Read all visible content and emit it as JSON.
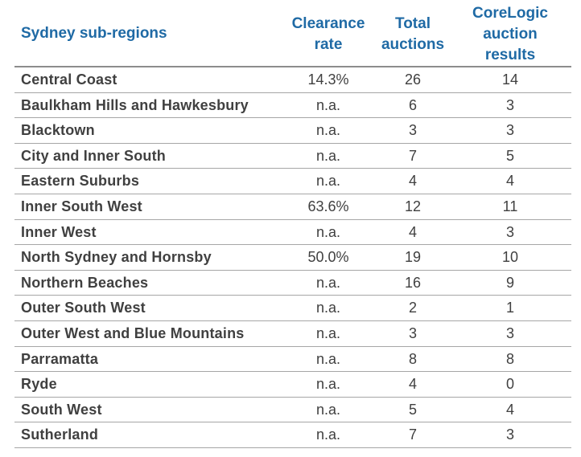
{
  "header": {
    "region": "Sydney sub-regions",
    "clearance": "Clearance\nrate",
    "total": "Total\nauctions",
    "corelogic": "CoreLogic\nauction\nresults"
  },
  "rows": [
    {
      "region": "Central Coast",
      "clearance": "14.3%",
      "total": "26",
      "corelogic": "14"
    },
    {
      "region": "Baulkham Hills and Hawkesbury",
      "clearance": "n.a.",
      "total": "6",
      "corelogic": "3"
    },
    {
      "region": "Blacktown",
      "clearance": "n.a.",
      "total": "3",
      "corelogic": "3"
    },
    {
      "region": "City and Inner South",
      "clearance": "n.a.",
      "total": "7",
      "corelogic": "5"
    },
    {
      "region": "Eastern Suburbs",
      "clearance": "n.a.",
      "total": "4",
      "corelogic": "4"
    },
    {
      "region": "Inner South West",
      "clearance": "63.6%",
      "total": "12",
      "corelogic": "11"
    },
    {
      "region": "Inner West",
      "clearance": "n.a.",
      "total": "4",
      "corelogic": "3"
    },
    {
      "region": "North Sydney and Hornsby",
      "clearance": "50.0%",
      "total": "19",
      "corelogic": "10"
    },
    {
      "region": "Northern Beaches",
      "clearance": "n.a.",
      "total": "16",
      "corelogic": "9"
    },
    {
      "region": "Outer South West",
      "clearance": "n.a.",
      "total": "2",
      "corelogic": "1"
    },
    {
      "region": "Outer West and Blue Mountains",
      "clearance": "n.a.",
      "total": "3",
      "corelogic": "3"
    },
    {
      "region": "Parramatta",
      "clearance": "n.a.",
      "total": "8",
      "corelogic": "8"
    },
    {
      "region": "Ryde",
      "clearance": "n.a.",
      "total": "4",
      "corelogic": "0"
    },
    {
      "region": "South West",
      "clearance": "n.a.",
      "total": "5",
      "corelogic": "4"
    },
    {
      "region": "Sutherland",
      "clearance": "n.a.",
      "total": "7",
      "corelogic": "3"
    }
  ],
  "colors": {
    "header_text": "#1f6aa5",
    "body_text": "#404040",
    "rule": "#8c8c8c"
  }
}
